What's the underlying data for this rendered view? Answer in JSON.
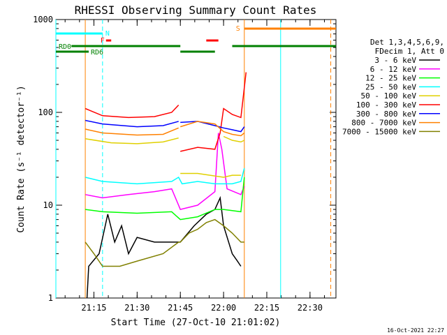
{
  "chart_data": {
    "type": "line",
    "title": "RHESSI Observing Summary Count Rates",
    "xlabel": "Start Time (27-Oct-10 21:01:02)",
    "ylabel": "Count Rate (s⁻¹ detector⁻¹)",
    "y_scale": "log",
    "ylim": [
      1,
      1000
    ],
    "xlim_minutes": [
      21.03,
      22.65
    ],
    "x_ticks": [
      {
        "label": "21:15",
        "hour": 21.25
      },
      {
        "label": "21:30",
        "hour": 21.5
      },
      {
        "label": "21:45",
        "hour": 21.75
      },
      {
        "label": "22:00",
        "hour": 22.0
      },
      {
        "label": "22:15",
        "hour": 22.25
      },
      {
        "label": "22:30",
        "hour": 22.5
      }
    ],
    "y_ticks": [
      {
        "label": "1",
        "value": 1
      },
      {
        "label": "10",
        "value": 10
      },
      {
        "label": "100",
        "value": 100
      },
      {
        "label": "1000",
        "value": 1000
      }
    ],
    "legend": {
      "position": "right",
      "header": [
        "Det 1,3,4,5,6,9,",
        "FDecim 1, Att 0"
      ]
    },
    "series": [
      {
        "name": "3 - 6 keV",
        "color": "#000000",
        "segments": [
          [
            [
              21.21,
              1
            ],
            [
              21.22,
              2.2
            ],
            [
              21.28,
              3
            ],
            [
              21.33,
              8
            ],
            [
              21.37,
              4
            ],
            [
              21.41,
              6
            ],
            [
              21.45,
              3
            ],
            [
              21.5,
              4.5
            ],
            [
              21.6,
              4
            ],
            [
              21.75,
              4
            ],
            [
              21.83,
              6
            ],
            [
              21.9,
              8
            ],
            [
              21.95,
              9
            ],
            [
              21.98,
              12
            ],
            [
              22.0,
              6
            ],
            [
              22.05,
              3
            ],
            [
              22.08,
              2.5
            ],
            [
              22.1,
              2.2
            ]
          ]
        ]
      },
      {
        "name": "6 - 12 keV",
        "color": "#ff00ff",
        "segments": [
          [
            [
              21.2,
              13
            ],
            [
              21.3,
              12
            ],
            [
              21.45,
              13
            ],
            [
              21.6,
              14
            ],
            [
              21.7,
              15
            ],
            [
              21.75,
              9
            ],
            [
              21.85,
              10
            ],
            [
              21.95,
              14
            ],
            [
              21.97,
              60
            ],
            [
              21.99,
              40
            ],
            [
              22.02,
              15
            ],
            [
              22.1,
              13
            ],
            [
              22.12,
              16
            ]
          ]
        ]
      },
      {
        "name": "12 - 25 keV",
        "color": "#00ff00",
        "segments": [
          [
            [
              21.2,
              9
            ],
            [
              21.3,
              8.5
            ],
            [
              21.5,
              8.2
            ],
            [
              21.7,
              8.5
            ],
            [
              21.75,
              7
            ],
            [
              21.85,
              7.5
            ],
            [
              21.95,
              9
            ],
            [
              22.0,
              9
            ],
            [
              22.1,
              8.5
            ],
            [
              22.12,
              20
            ]
          ]
        ]
      },
      {
        "name": "25 - 50 keV",
        "color": "#00ffff",
        "segments": [
          [
            [
              21.2,
              20
            ],
            [
              21.3,
              18
            ],
            [
              21.5,
              17
            ],
            [
              21.7,
              18
            ],
            [
              21.74,
              20
            ],
            [
              21.76,
              17
            ],
            [
              21.85,
              18
            ],
            [
              21.95,
              17
            ],
            [
              22.05,
              17
            ],
            [
              22.1,
              18
            ],
            [
              22.12,
              25
            ]
          ]
        ]
      },
      {
        "name": "50 - 100 keV",
        "color": "#e0d000",
        "segments": [
          [
            [
              21.2,
              52
            ],
            [
              21.35,
              47
            ],
            [
              21.5,
              46
            ],
            [
              21.65,
              48
            ],
            [
              21.74,
              53
            ]
          ],
          [
            [
              21.75,
              22
            ],
            [
              21.85,
              22
            ],
            [
              22.0,
              20
            ],
            [
              22.05,
              21
            ],
            [
              22.1,
              21
            ]
          ],
          [
            [
              22.0,
              55
            ],
            [
              22.05,
              50
            ],
            [
              22.1,
              48
            ],
            [
              22.12,
              50
            ]
          ]
        ]
      },
      {
        "name": "100 - 300 keV",
        "color": "#ff0000",
        "segments": [
          [
            [
              21.2,
              110
            ],
            [
              21.3,
              92
            ],
            [
              21.45,
              88
            ],
            [
              21.6,
              90
            ],
            [
              21.7,
              100
            ],
            [
              21.74,
              120
            ]
          ],
          [
            [
              21.75,
              38
            ],
            [
              21.85,
              42
            ],
            [
              21.95,
              40
            ],
            [
              21.98,
              60
            ],
            [
              22.0,
              110
            ],
            [
              22.05,
              95
            ],
            [
              22.1,
              88
            ],
            [
              22.13,
              270
            ]
          ]
        ]
      },
      {
        "name": "300 - 800 keV",
        "color": "#0000ff",
        "segments": [
          [
            [
              21.2,
              82
            ],
            [
              21.3,
              75
            ],
            [
              21.5,
              70
            ],
            [
              21.65,
              72
            ],
            [
              21.74,
              80
            ]
          ],
          [
            [
              21.75,
              78
            ],
            [
              21.85,
              80
            ],
            [
              21.95,
              72
            ],
            [
              22.0,
              68
            ],
            [
              22.05,
              65
            ],
            [
              22.1,
              62
            ],
            [
              22.12,
              70
            ]
          ]
        ]
      },
      {
        "name": "800 - 7000 keV",
        "color": "#ff8000",
        "segments": [
          [
            [
              21.2,
              66
            ],
            [
              21.3,
              60
            ],
            [
              21.5,
              57
            ],
            [
              21.65,
              58
            ],
            [
              21.74,
              68
            ]
          ],
          [
            [
              21.75,
              70
            ],
            [
              21.85,
              80
            ],
            [
              21.95,
              75
            ],
            [
              22.0,
              62
            ],
            [
              22.05,
              58
            ],
            [
              22.1,
              56
            ],
            [
              22.12,
              60
            ]
          ]
        ]
      },
      {
        "name": "7000 - 15000 keV",
        "color": "#808000",
        "segments": [
          [
            [
              21.2,
              4
            ],
            [
              21.25,
              3
            ],
            [
              21.3,
              2.2
            ],
            [
              21.4,
              2.2
            ],
            [
              21.5,
              2.5
            ],
            [
              21.65,
              3
            ],
            [
              21.74,
              4
            ],
            [
              21.75,
              4
            ],
            [
              21.8,
              5
            ],
            [
              21.85,
              5.5
            ],
            [
              21.9,
              6.5
            ],
            [
              21.95,
              7
            ],
            [
              22.0,
              6
            ],
            [
              22.05,
              5
            ],
            [
              22.1,
              4
            ],
            [
              22.12,
              4
            ]
          ]
        ]
      }
    ],
    "state_bars": [
      {
        "label": "N",
        "color": "#00ffff",
        "segments": [
          [
            21.03,
            21.3
          ]
        ]
      },
      {
        "label": "F",
        "color": "#ff0000",
        "segments": [
          [
            21.32,
            21.35
          ],
          [
            21.9,
            21.97
          ]
        ]
      },
      {
        "label": "S",
        "color": "#ff8000",
        "segments": [
          [
            22.12,
            22.65
          ]
        ]
      },
      {
        "label": "RD0",
        "color": "#008000",
        "segments": [
          [
            21.12,
            21.75
          ],
          [
            22.05,
            22.65
          ]
        ]
      },
      {
        "label": "RD6",
        "color": "#008000",
        "segments": [
          [
            21.03,
            21.22
          ],
          [
            21.75,
            21.95
          ]
        ]
      }
    ],
    "vertical_markers": [
      {
        "color": "#00ffff",
        "style": "solid",
        "x": 21.03
      },
      {
        "color": "#00ffff",
        "style": "dashed",
        "x": 21.3
      },
      {
        "color": "#ff8000",
        "style": "solid",
        "x": 21.2
      },
      {
        "color": "#ff8000",
        "style": "solid",
        "x": 22.12
      },
      {
        "color": "#00ffff",
        "style": "solid",
        "x": 22.33
      },
      {
        "color": "#ff8000",
        "style": "dashed",
        "x": 22.62
      }
    ]
  },
  "footer": {
    "date_label": "16-Oct-2021 22:27"
  }
}
